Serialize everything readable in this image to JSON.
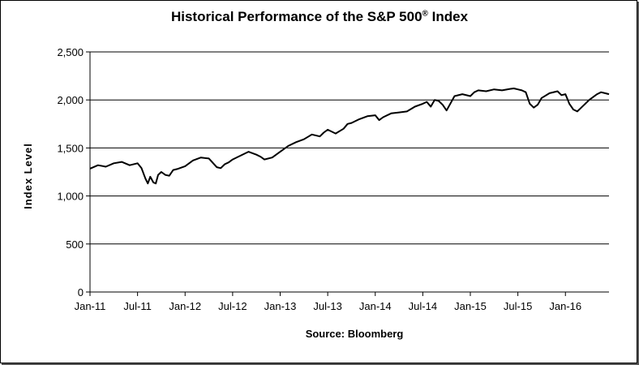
{
  "chart_data": {
    "type": "line",
    "title": "Historical Performance of the S&P 500",
    "title_mark": "®",
    "title_suffix": " Index",
    "xlabel": "Source:  Bloomberg",
    "ylabel": "Index Level",
    "ylim": [
      0,
      2500
    ],
    "yticks": [
      0,
      500,
      1000,
      1500,
      2000,
      2500
    ],
    "ytick_labels": [
      "0",
      "500",
      "1,000",
      "1,500",
      "2,000",
      "2,500"
    ],
    "xtick_labels": [
      "Jan-11",
      "Jul-11",
      "Jan-12",
      "Jul-12",
      "Jan-13",
      "Jul-13",
      "Jan-14",
      "Jul-14",
      "Jan-15",
      "Jul-15",
      "Jan-16"
    ],
    "xtick_months": [
      0,
      6,
      12,
      18,
      24,
      30,
      36,
      42,
      48,
      54,
      60
    ],
    "xlim_months": [
      0,
      65.5
    ],
    "grid": "horizontal",
    "legend": "none",
    "line_color": "#000000",
    "series": [
      {
        "months": [
          0,
          1,
          2,
          3,
          4,
          5,
          6,
          6.5,
          7,
          7.3,
          7.6,
          8,
          8.3,
          8.6,
          9,
          9.5,
          10,
          10.5,
          11,
          12,
          13,
          14,
          15,
          16,
          16.5,
          17,
          17.5,
          18,
          19,
          20,
          21,
          21.5,
          22,
          23,
          24,
          24.5,
          25,
          26,
          27,
          28,
          29,
          29.5,
          30,
          31,
          32,
          32.5,
          33,
          34,
          35,
          36,
          36.5,
          37,
          38,
          39,
          40,
          41,
          42,
          42.5,
          43,
          43.5,
          44,
          44.5,
          45,
          46,
          47,
          48,
          48.5,
          49,
          50,
          51,
          52,
          53,
          53.5,
          54,
          54.5,
          55,
          55.5,
          56,
          56.5,
          57,
          58,
          59,
          59.5,
          60,
          60.5,
          61,
          61.5,
          62,
          63,
          64,
          64.5,
          65,
          65.5
        ],
        "values": [
          1285,
          1320,
          1305,
          1340,
          1355,
          1320,
          1340,
          1290,
          1180,
          1130,
          1200,
          1140,
          1130,
          1220,
          1250,
          1220,
          1210,
          1270,
          1280,
          1310,
          1370,
          1400,
          1390,
          1300,
          1290,
          1330,
          1350,
          1380,
          1420,
          1460,
          1430,
          1410,
          1380,
          1400,
          1460,
          1490,
          1520,
          1560,
          1590,
          1640,
          1620,
          1660,
          1690,
          1650,
          1700,
          1750,
          1760,
          1800,
          1830,
          1840,
          1790,
          1820,
          1860,
          1870,
          1880,
          1930,
          1960,
          1980,
          1930,
          2000,
          1990,
          1950,
          1890,
          2040,
          2060,
          2040,
          2080,
          2100,
          2090,
          2110,
          2100,
          2115,
          2120,
          2110,
          2100,
          2080,
          1960,
          1920,
          1950,
          2020,
          2070,
          2090,
          2050,
          2060,
          1960,
          1900,
          1880,
          1920,
          2000,
          2060,
          2080,
          2070,
          2060
        ]
      }
    ]
  }
}
